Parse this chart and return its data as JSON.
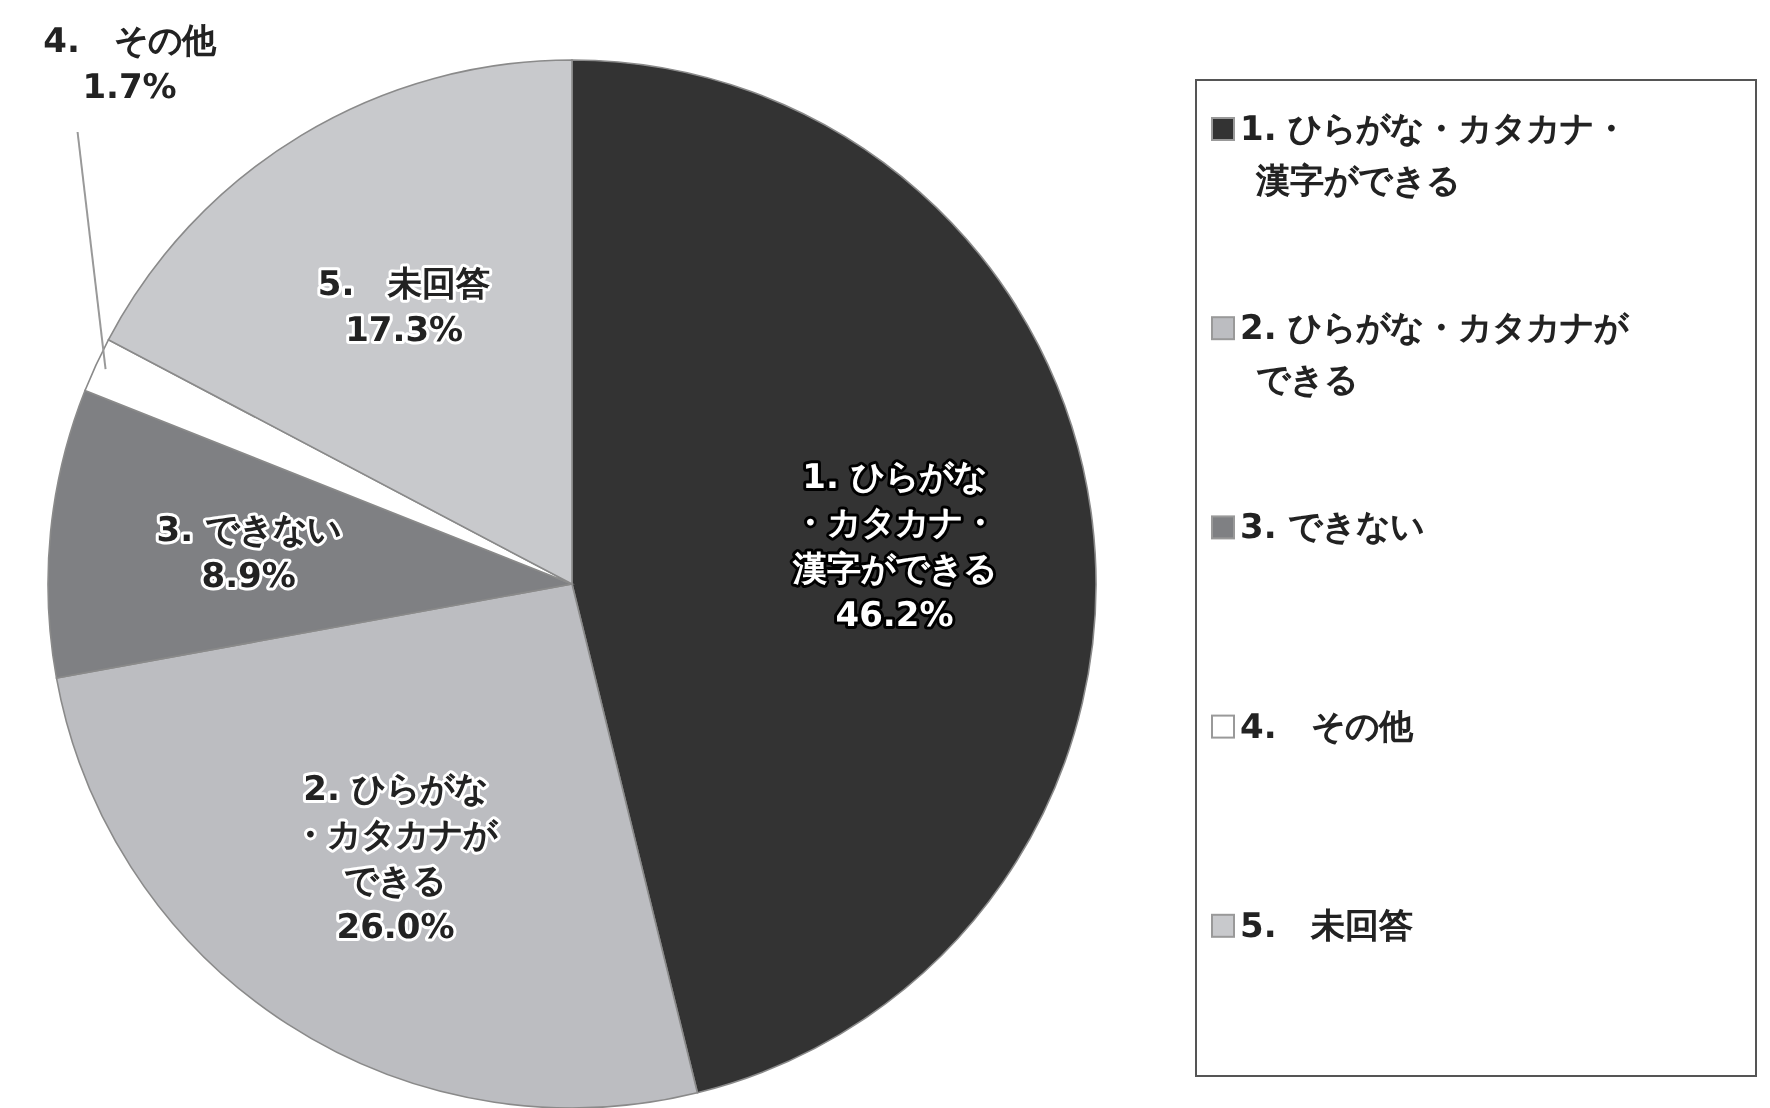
{
  "chart_data": {
    "type": "pie",
    "categories": [
      "1. ひらがな・カタカナ・漢字ができる",
      "2. ひらがな・カタカナができる",
      "3. できない",
      "4.　その他",
      "5.　未回答"
    ],
    "values": [
      46.2,
      26.0,
      8.9,
      1.7,
      17.3
    ],
    "colors": [
      "#333333",
      "#bcbdc1",
      "#7f8083",
      "#ffffff",
      "#c8c9cc"
    ],
    "value_labels": [
      "46.2%",
      "26.0%",
      "8.9%",
      "1.7%",
      "17.3%"
    ],
    "legend": "right"
  }
}
